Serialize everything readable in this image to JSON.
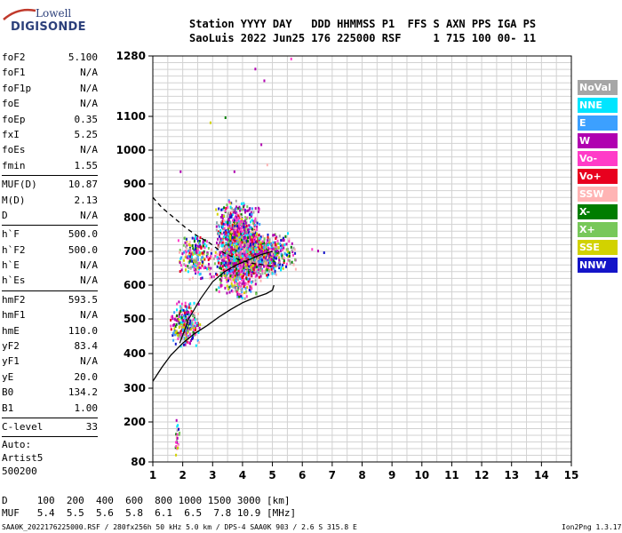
{
  "logo": {
    "line1": "Lowell",
    "line2": "DIGISONDE"
  },
  "header": {
    "line1": "Station YYYY DAY   DDD HHMMSS P1  FFS S AXN PPS IGA PS",
    "line2": "SaoLuis 2022 Jun25 176 225000 RSF     1 715 100 00- 11"
  },
  "params": {
    "group1": [
      {
        "k": "foF2",
        "v": "5.100"
      },
      {
        "k": "foF1",
        "v": "N/A"
      },
      {
        "k": "foF1p",
        "v": "N/A"
      },
      {
        "k": "foE",
        "v": "N/A"
      },
      {
        "k": "foEp",
        "v": "0.35"
      },
      {
        "k": "fxI",
        "v": "5.25"
      },
      {
        "k": "foEs",
        "v": "N/A"
      },
      {
        "k": "fmin",
        "v": "1.55"
      }
    ],
    "group2": [
      {
        "k": "MUF(D)",
        "v": "10.87"
      },
      {
        "k": "M(D)",
        "v": "2.13"
      },
      {
        "k": "D",
        "v": "N/A"
      }
    ],
    "group3": [
      {
        "k": "h`F",
        "v": "500.0"
      },
      {
        "k": "h`F2",
        "v": "500.0"
      },
      {
        "k": "h`E",
        "v": "N/A"
      },
      {
        "k": "h`Es",
        "v": "N/A"
      }
    ],
    "group4": [
      {
        "k": "hmF2",
        "v": "593.5"
      },
      {
        "k": "hmF1",
        "v": "N/A"
      },
      {
        "k": "hmE",
        "v": "110.0"
      },
      {
        "k": "yF2",
        "v": "83.4"
      },
      {
        "k": "yF1",
        "v": "N/A"
      },
      {
        "k": "yE",
        "v": "20.0"
      },
      {
        "k": "B0",
        "v": "134.2"
      },
      {
        "k": "B1",
        "v": "1.00"
      }
    ],
    "group5": [
      {
        "k": "C-level",
        "v": "33"
      }
    ],
    "auto": [
      "Auto:",
      "Artist5",
      "500200"
    ]
  },
  "legend": [
    {
      "label": "NoVal",
      "color": "#a6a6a6"
    },
    {
      "label": "NNE",
      "color": "#00e5ff"
    },
    {
      "label": "E",
      "color": "#3ca0ff"
    },
    {
      "label": "W",
      "color": "#b000b0"
    },
    {
      "label": "Vo-",
      "color": "#ff3cc8"
    },
    {
      "label": "Vo+",
      "color": "#e8001e"
    },
    {
      "label": "SSW",
      "color": "#ffb4b4"
    },
    {
      "label": "X-",
      "color": "#007d00"
    },
    {
      "label": "X+",
      "color": "#78c85a"
    },
    {
      "label": "SSE",
      "color": "#d2d200"
    },
    {
      "label": "NNW",
      "color": "#1414c8"
    }
  ],
  "footer": {
    "d_row": "D     100  200  400  600  800 1000 1500 3000 [km]",
    "muf_row": "MUF   5.4  5.5  5.6  5.8  6.1  6.5  7.8 10.9 [MHz]",
    "file_info": "SAA0K_2022176225000.RSF / 280fx256h 50 kHz 5.0 km / DPS-4 SAA0K 903 / 2.6 S 315.8 E",
    "version": "Ion2Png 1.3.17"
  },
  "chart_data": {
    "type": "scatter",
    "x_ticks": [
      "1",
      "2",
      "3",
      "4",
      "5",
      "6",
      "7",
      "8",
      "9",
      "10",
      "11",
      "12",
      "13",
      "14",
      "15"
    ],
    "y_ticks": [
      "80",
      "200",
      "300",
      "400",
      "500",
      "600",
      "700",
      "800",
      "900",
      "1000",
      "1100",
      "1280"
    ],
    "xlim": [
      1,
      15
    ],
    "ylim": [
      80,
      1280
    ],
    "grid": true,
    "clusters": [
      {
        "x": [
          3.0,
          4.6
        ],
        "y": [
          560,
          860
        ],
        "n": 1400
      },
      {
        "x": [
          3.4,
          5.2
        ],
        "y": [
          620,
          760
        ],
        "n": 700
      },
      {
        "x": [
          1.5,
          2.6
        ],
        "y": [
          420,
          560
        ],
        "n": 260
      },
      {
        "x": [
          1.8,
          3.0
        ],
        "y": [
          620,
          760
        ],
        "n": 220
      },
      {
        "x": [
          4.2,
          5.8
        ],
        "y": [
          640,
          760
        ],
        "n": 260
      },
      {
        "x": [
          1.7,
          1.9
        ],
        "y": [
          100,
          230
        ],
        "n": 25
      }
    ],
    "sparse_points": [
      {
        "x": 4.4,
        "y": 1245,
        "c": "#b000b0"
      },
      {
        "x": 4.7,
        "y": 1210,
        "c": "#b000b0"
      },
      {
        "x": 5.6,
        "y": 1275,
        "c": "#ff3cc8"
      },
      {
        "x": 3.4,
        "y": 1100,
        "c": "#007d00"
      },
      {
        "x": 2.9,
        "y": 1085,
        "c": "#d2d200"
      },
      {
        "x": 3.7,
        "y": 940,
        "c": "#b000b0"
      },
      {
        "x": 4.6,
        "y": 1020,
        "c": "#b000b0"
      },
      {
        "x": 4.8,
        "y": 960,
        "c": "#ffb4b4"
      },
      {
        "x": 1.9,
        "y": 940,
        "c": "#b000b0"
      },
      {
        "x": 6.7,
        "y": 700,
        "c": "#1414c8"
      },
      {
        "x": 6.5,
        "y": 705,
        "c": "#b000b0"
      },
      {
        "x": 6.3,
        "y": 710,
        "c": "#ff3cc8"
      }
    ],
    "profile_solid": {
      "x": [
        1.0,
        1.3,
        1.6,
        2.0,
        2.4,
        2.8,
        3.2,
        3.6,
        4.0,
        4.4,
        4.8,
        5.0,
        5.05
      ],
      "y": [
        320,
        360,
        395,
        430,
        458,
        480,
        505,
        528,
        548,
        563,
        575,
        585,
        600
      ]
    },
    "profile_dashed": {
      "x": [
        1.0,
        1.3,
        1.7,
        2.1,
        2.5,
        2.9,
        3.2,
        3.5,
        3.9,
        4.3,
        4.7,
        5.0
      ],
      "y": [
        860,
        830,
        800,
        770,
        745,
        725,
        705,
        690,
        675,
        665,
        660,
        655
      ]
    },
    "trace_solid": {
      "x": [
        1.9,
        2.2,
        2.6,
        3.0,
        3.4,
        3.8,
        4.2,
        4.6,
        5.0
      ],
      "y": [
        430,
        500,
        560,
        610,
        640,
        660,
        675,
        690,
        700
      ]
    }
  }
}
